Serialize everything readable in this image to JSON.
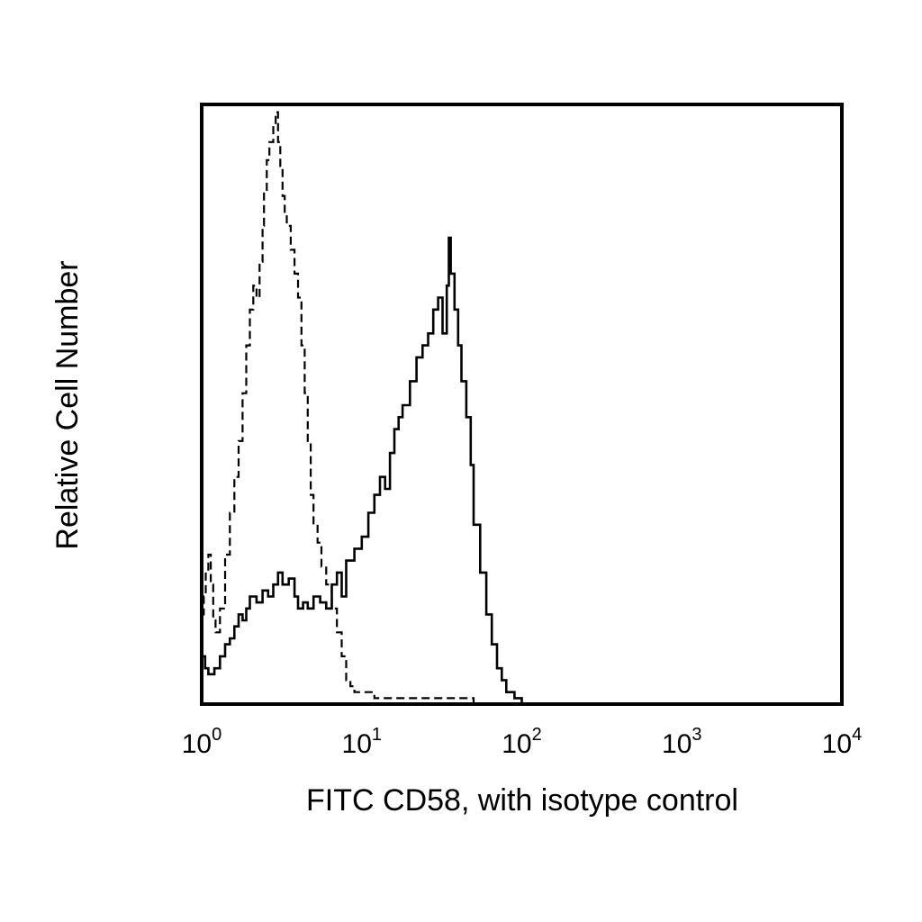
{
  "chart_data": {
    "type": "line",
    "xlabel": "FITC CD58, with isotype control",
    "ylabel": "Relative Cell Number",
    "xscale": "log",
    "xlim": [
      1,
      10000
    ],
    "ylim": [
      0,
      100
    ],
    "grid": false,
    "legend": "none",
    "x_ticks": [
      {
        "base": "10",
        "exp": "0",
        "value": 1
      },
      {
        "base": "10",
        "exp": "1",
        "value": 10
      },
      {
        "base": "10",
        "exp": "2",
        "value": 100
      },
      {
        "base": "10",
        "exp": "3",
        "value": 1000
      },
      {
        "base": "10",
        "exp": "4",
        "value": 10000
      }
    ],
    "series": [
      {
        "style": "dashed",
        "color": "#000000",
        "x": [
          1.0,
          1.03,
          1.06,
          1.1,
          1.14,
          1.18,
          1.22,
          1.3,
          1.4,
          1.5,
          1.6,
          1.7,
          1.8,
          1.9,
          2.0,
          2.1,
          2.2,
          2.3,
          2.4,
          2.45,
          2.55,
          2.65,
          2.8,
          2.9,
          3.0,
          3.1,
          3.2,
          3.3,
          3.4,
          3.6,
          3.8,
          4.0,
          4.2,
          4.4,
          4.6,
          4.8,
          5.0,
          5.3,
          5.6,
          6.0,
          6.5,
          7.0,
          7.5,
          8.0,
          8.5,
          9.0,
          10.0,
          12.0,
          15.0,
          20.0,
          30.0,
          50.0,
          80.0,
          120.0,
          200.0
        ],
        "y": [
          15,
          18,
          22,
          25,
          20,
          14,
          12,
          16,
          25,
          32,
          38,
          44,
          52,
          60,
          66,
          70,
          68,
          74,
          80,
          86,
          91,
          94,
          97,
          99,
          94,
          90,
          85,
          82,
          80,
          76,
          72,
          68,
          60,
          52,
          44,
          35,
          30,
          27,
          23,
          20,
          16,
          12,
          8,
          4,
          3,
          2,
          2,
          1,
          1,
          1,
          1,
          0,
          0,
          0,
          0
        ]
      },
      {
        "style": "solid",
        "color": "#000000",
        "x": [
          1.0,
          1.05,
          1.1,
          1.2,
          1.3,
          1.4,
          1.5,
          1.6,
          1.7,
          1.8,
          1.9,
          2.0,
          2.2,
          2.4,
          2.6,
          2.8,
          3.0,
          3.2,
          3.5,
          3.8,
          4.0,
          4.3,
          4.6,
          5.0,
          5.5,
          6.0,
          6.5,
          7.0,
          7.5,
          8.0,
          9.0,
          10.0,
          11.0,
          12.0,
          13.0,
          14.0,
          15.0,
          16.0,
          17.0,
          18.0,
          19.0,
          20.0,
          22.0,
          24.0,
          26.0,
          28.0,
          30.0,
          32.0,
          34.0,
          35.0,
          36.0,
          38.0,
          40.0,
          42.0,
          45.0,
          48.0,
          50.0,
          55.0,
          60.0,
          65.0,
          70.0,
          75.0,
          80.0,
          90.0,
          100.0,
          110.0,
          120.0,
          200.0
        ],
        "y": [
          8,
          6,
          5,
          6,
          8,
          10,
          11,
          13,
          15,
          14,
          16,
          18,
          17,
          19,
          18,
          20,
          22,
          20,
          21,
          18,
          16,
          17,
          16,
          18,
          17,
          16,
          20,
          22,
          18,
          24,
          26,
          28,
          32,
          35,
          38,
          36,
          42,
          46,
          48,
          50,
          50,
          54,
          58,
          60,
          62,
          66,
          68,
          62,
          70,
          78,
          72,
          66,
          60,
          54,
          48,
          40,
          30,
          22,
          15,
          10,
          6,
          4,
          2,
          1,
          0,
          0,
          0,
          0
        ]
      }
    ]
  }
}
